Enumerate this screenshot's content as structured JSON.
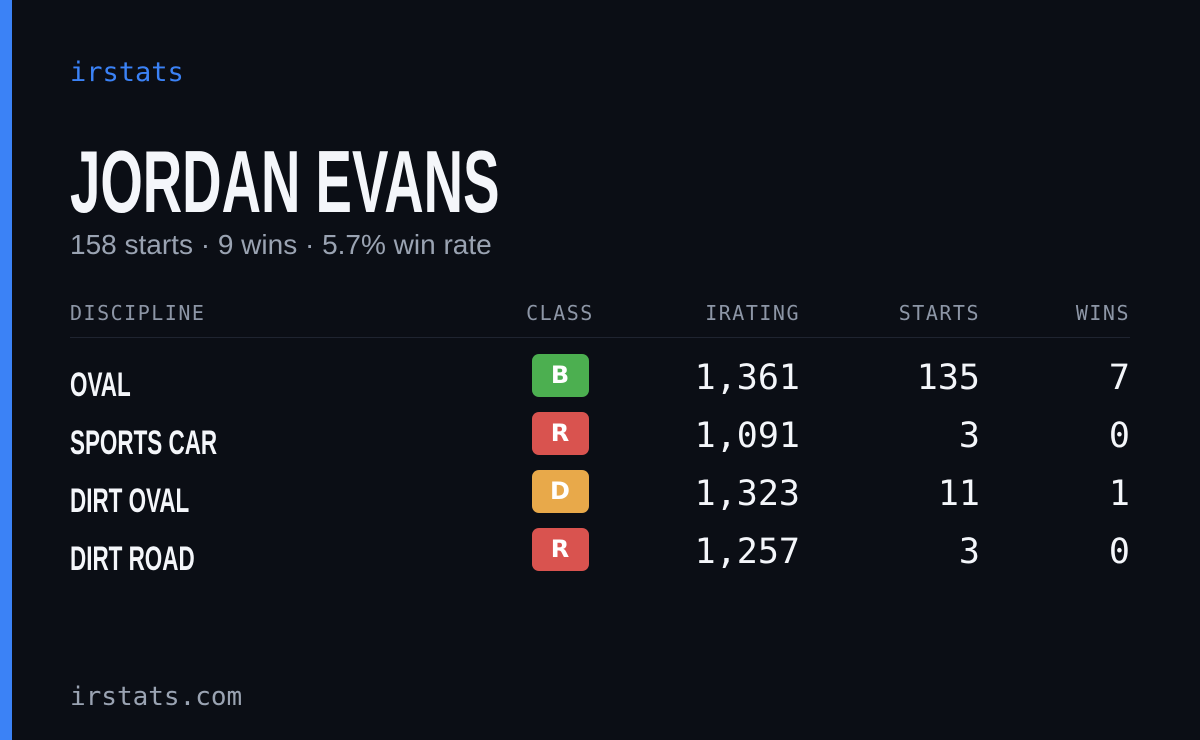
{
  "brand": "irstats",
  "title": "JORDAN EVANS",
  "subtitle": "158 starts · 9 wins · 5.7% win rate",
  "table": {
    "columns": [
      "DISCIPLINE",
      "CLASS",
      "IRATING",
      "STARTS",
      "WINS"
    ],
    "rows": [
      {
        "discipline": "OVAL",
        "class": "B",
        "class_color": "#4caf50",
        "irating": "1,361",
        "starts": "135",
        "wins": "7"
      },
      {
        "discipline": "SPORTS CAR",
        "class": "R",
        "class_color": "#d9534f",
        "irating": "1,091",
        "starts": "3",
        "wins": "0"
      },
      {
        "discipline": "DIRT OVAL",
        "class": "D",
        "class_color": "#e8a94a",
        "irating": "1,323",
        "starts": "11",
        "wins": "1"
      },
      {
        "discipline": "DIRT ROAD",
        "class": "R",
        "class_color": "#d9534f",
        "irating": "1,257",
        "starts": "3",
        "wins": "0"
      }
    ]
  },
  "footer": "irstats.com"
}
